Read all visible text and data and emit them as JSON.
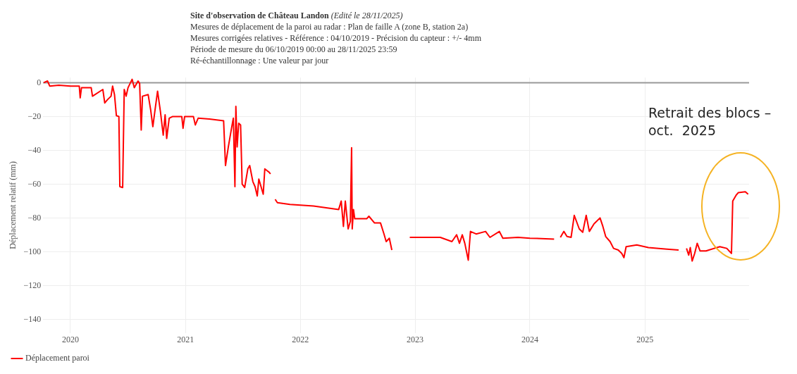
{
  "chart_data": {
    "type": "line",
    "title": "Site d'observation de Château Landon",
    "subtitle": "(Edité le 28/11/2025)",
    "ylabel": "Déplacement relatif (mm)",
    "annotations": [
      "Mesures de déplacement de la paroi au radar : Plan de faille A (zone B, station 2a)",
      "Mesures corrigées relatives - Référence : 04/10/2019 - Précision du capteur : +/- 4mm",
      "Période de mesure du 06/10/2019 00:00 au 28/11/2025 23:59",
      "Ré-échantillonnage : Une valeur par jour",
      "Retrait des blocs – oct.  2025"
    ],
    "xlim": [
      "2019-10-06",
      "2025-11-28"
    ],
    "xticks": [
      {
        "value": "2020-01-01",
        "label": "2020"
      },
      {
        "value": "2021-01-01",
        "label": "2021"
      },
      {
        "value": "2022-01-01",
        "label": "2022"
      },
      {
        "value": "2023-01-01",
        "label": "2023"
      },
      {
        "value": "2024-01-01",
        "label": "2024"
      },
      {
        "value": "2025-01-01",
        "label": "2025"
      }
    ],
    "ylim": [
      -148,
      3
    ],
    "yticks": [
      0,
      -20,
      -40,
      -60,
      -80,
      -100,
      -120,
      -140
    ],
    "grid": true,
    "legend": "bottom left",
    "marker": "none",
    "line_style": "solid",
    "ref_lines": [
      {
        "axis": "y",
        "value": 0,
        "color": "#999999"
      }
    ],
    "x": [
      "2019-10-08",
      "2019-10-20",
      "2019-10-27",
      "2019-11-25",
      "2020-01-01",
      "2020-01-29",
      "2020-02-01",
      "2020-02-05",
      "2020-03-07",
      "2020-03-11",
      "2020-04-13",
      "2020-04-19",
      "2020-04-28",
      "2020-05-09",
      "2020-05-14",
      "2020-05-20",
      "2020-05-26",
      "2020-06-03",
      "2020-06-06",
      "2020-06-15",
      "2020-06-20",
      "2020-06-26",
      "2020-07-02",
      "2020-07-15",
      "2020-07-22",
      "2020-08-03",
      "2020-08-08",
      "2020-08-13",
      "2020-08-17",
      "2020-09-04",
      "2020-09-12",
      "2020-09-19",
      "2020-09-26",
      "2020-10-04",
      "2020-10-13",
      "2020-10-22",
      "2020-10-28",
      "2020-11-02",
      "2020-11-10",
      "2020-11-21",
      "2020-12-20",
      "2020-12-24",
      "2020-12-29",
      "2021-01-26",
      "2021-02-01",
      "2021-02-10",
      "2021-03-18",
      "2021-05-02",
      "2021-05-08",
      "2021-05-17",
      "2021-05-28",
      "2021-06-02",
      "2021-06-07",
      "2021-06-10",
      "2021-06-14",
      "2021-06-19",
      "2021-06-25",
      "2021-06-30",
      "2021-07-08",
      "2021-07-18",
      "2021-07-24",
      "2021-08-03",
      "2021-08-10",
      "2021-08-17",
      "2021-08-22",
      "2021-09-05",
      "2021-09-10",
      "2021-09-17",
      "2021-09-24",
      "2021-09-28",
      "2021-10-05",
      "2021-10-13",
      "2021-10-20",
      "2021-11-29",
      "2022-02-12",
      "2022-05-03",
      "2022-05-11",
      "2022-05-18",
      "2022-05-24",
      "2022-06-02",
      "2022-06-09",
      "2022-06-13",
      "2022-06-15",
      "2022-06-19",
      "2022-06-23",
      "2022-07-31",
      "2022-08-07",
      "2022-08-25",
      "2022-09-13",
      "2022-09-24",
      "2022-10-01",
      "2022-10-11",
      "2022-10-19",
      "2022-11-15",
      "2022-12-15",
      "2023-01-08",
      "2023-03-22",
      "2023-04-28",
      "2023-05-13",
      "2023-05-22",
      "2023-05-31",
      "2023-06-08",
      "2023-06-19",
      "2023-06-26",
      "2023-07-14",
      "2023-08-13",
      "2023-08-27",
      "2023-09-26",
      "2023-10-07",
      "2023-11-24",
      "2024-01-01",
      "2024-03-18",
      "2024-03-28",
      "2024-04-07",
      "2024-04-18",
      "2024-04-28",
      "2024-05-11",
      "2024-05-21",
      "2024-06-06",
      "2024-06-17",
      "2024-06-28",
      "2024-07-08",
      "2024-07-23",
      "2024-08-11",
      "2024-08-20",
      "2024-08-29",
      "2024-09-12",
      "2024-09-23",
      "2024-10-08",
      "2024-10-19",
      "2024-10-26",
      "2024-11-02",
      "2024-12-06",
      "2025-01-12",
      "2025-03-12",
      "2025-04-18",
      "2025-04-30",
      "2025-05-13",
      "2025-05-20",
      "2025-05-25",
      "2025-05-31",
      "2025-06-08",
      "2025-06-16",
      "2025-06-25",
      "2025-07-14",
      "2025-08-27",
      "2025-09-18",
      "2025-10-03",
      "2025-10-07",
      "2025-10-18",
      "2025-10-25",
      "2025-11-16",
      "2025-11-25"
    ],
    "series": [
      {
        "name": "Déplacement paroi",
        "color": "#ff0000",
        "values": [
          0,
          1,
          -2,
          -1.5,
          -2,
          -2,
          -9,
          -3,
          -3,
          -8,
          -4,
          -12,
          -10,
          -8,
          -2,
          -7,
          -19.5,
          -20,
          -61.5,
          -62,
          -4,
          -8,
          -3,
          2,
          -3,
          1,
          -0.5,
          -28,
          -8,
          -7,
          -16,
          -26,
          -16,
          -5,
          -17,
          -31,
          -19,
          -33,
          -21,
          -20,
          -20,
          -27,
          -20,
          -20,
          -25,
          -21,
          -21.5,
          -22.5,
          -49,
          -38,
          -26,
          -21,
          -61.5,
          -14,
          -38,
          -24,
          -25,
          -60,
          -62,
          -51,
          -49,
          -58.5,
          -61.5,
          -67,
          -57,
          -66,
          -51,
          -52,
          -53,
          -54,
          null,
          -69,
          -71,
          -72,
          -73,
          -75,
          -70,
          -85,
          -70,
          -86.5,
          -82,
          -38.5,
          -86.5,
          -75,
          -80.5,
          -80.5,
          -79,
          -83,
          -83,
          -89.5,
          -94,
          -92,
          -99,
          null,
          -91.5,
          -91.5,
          -91.5,
          -94,
          -90,
          -95,
          -90,
          -95,
          -105,
          -88,
          -89.5,
          -88,
          -91.5,
          -88,
          -92,
          -91.5,
          -92,
          -92.5,
          null,
          -91.5,
          -88,
          -91,
          -91.5,
          -78.5,
          -86.5,
          -88.5,
          -78.5,
          -88,
          -83.5,
          -80,
          -85,
          -91,
          -94,
          -98,
          -99,
          -101,
          -103.5,
          -97,
          -96,
          -97.5,
          -98.5,
          -99,
          null,
          -98,
          -102,
          -97.5,
          -105.5,
          -101,
          -95,
          -99.5,
          -99.5,
          -97,
          -98,
          -101,
          -70,
          -66.5,
          -65,
          -64.5,
          -66
        ]
      }
    ]
  }
}
